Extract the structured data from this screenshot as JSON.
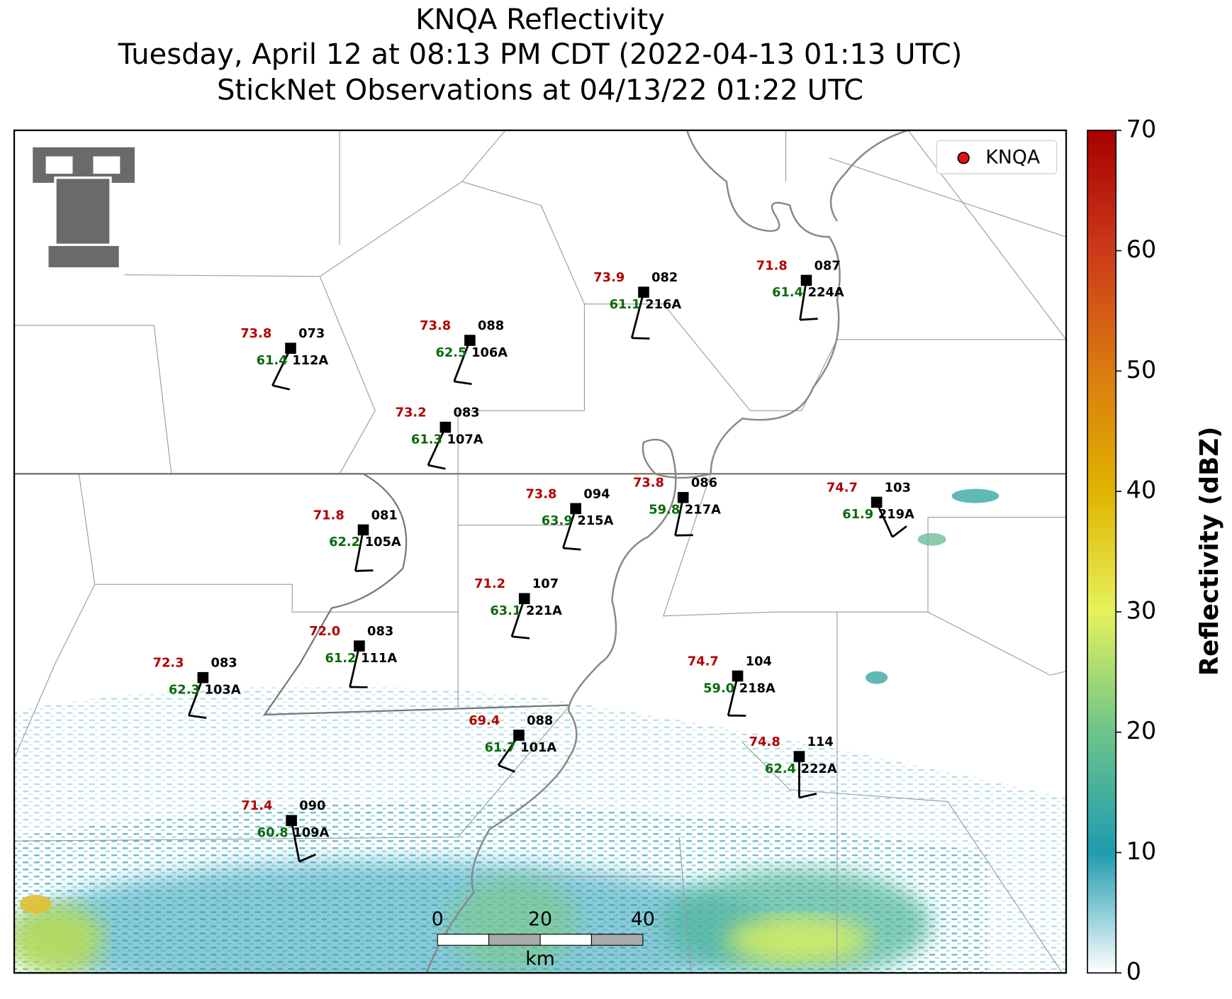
{
  "title": [
    "KNQA Reflectivity",
    "Tuesday, April 12 at 08:13 PM CDT (2022-04-13 01:13 UTC)",
    "StickNet Observations at 04/13/22 01:22 UTC"
  ],
  "legend": "KNQA",
  "colorbar": {
    "label": "Reflectivity (dBZ)",
    "range": [
      0,
      70
    ],
    "ticks": [
      0,
      10,
      20,
      30,
      40,
      50,
      60,
      70
    ]
  },
  "scale_bar": {
    "range": [
      0,
      40
    ],
    "ticks": [
      0,
      20,
      40
    ],
    "unit": "km"
  },
  "stations": [
    {
      "id": "112A",
      "temp": "73.8",
      "dew": "61.4",
      "other": "073"
    },
    {
      "id": "106A",
      "temp": "73.8",
      "dew": "62.5",
      "other": "088"
    },
    {
      "id": "107A",
      "temp": "73.2",
      "dew": "61.3",
      "other": "083"
    },
    {
      "id": "216A",
      "temp": "73.9",
      "dew": "61.1",
      "other": "082"
    },
    {
      "id": "224A",
      "temp": "71.8",
      "dew": "61.4",
      "other": "087"
    },
    {
      "id": "105A",
      "temp": "71.8",
      "dew": "62.2",
      "other": "081"
    },
    {
      "id": "215A",
      "temp": "73.8",
      "dew": "63.9",
      "other": "094"
    },
    {
      "id": "217A",
      "temp": "73.8",
      "dew": "59.8",
      "other": "086"
    },
    {
      "id": "219A",
      "temp": "74.7",
      "dew": "61.9",
      "other": "103"
    },
    {
      "id": "221A",
      "temp": "71.2",
      "dew": "63.1",
      "other": "107"
    },
    {
      "id": "111A",
      "temp": "72.0",
      "dew": "61.2",
      "other": "083"
    },
    {
      "id": "103A",
      "temp": "72.3",
      "dew": "62.3",
      "other": "083"
    },
    {
      "id": "218A",
      "temp": "74.7",
      "dew": "59.0",
      "other": "104"
    },
    {
      "id": "101A",
      "temp": "69.4",
      "dew": "61.7",
      "other": "088"
    },
    {
      "id": "222A",
      "temp": "74.8",
      "dew": "62.4",
      "other": "114"
    },
    {
      "id": "109A",
      "temp": "71.4",
      "dew": "60.8",
      "other": "090"
    }
  ]
}
